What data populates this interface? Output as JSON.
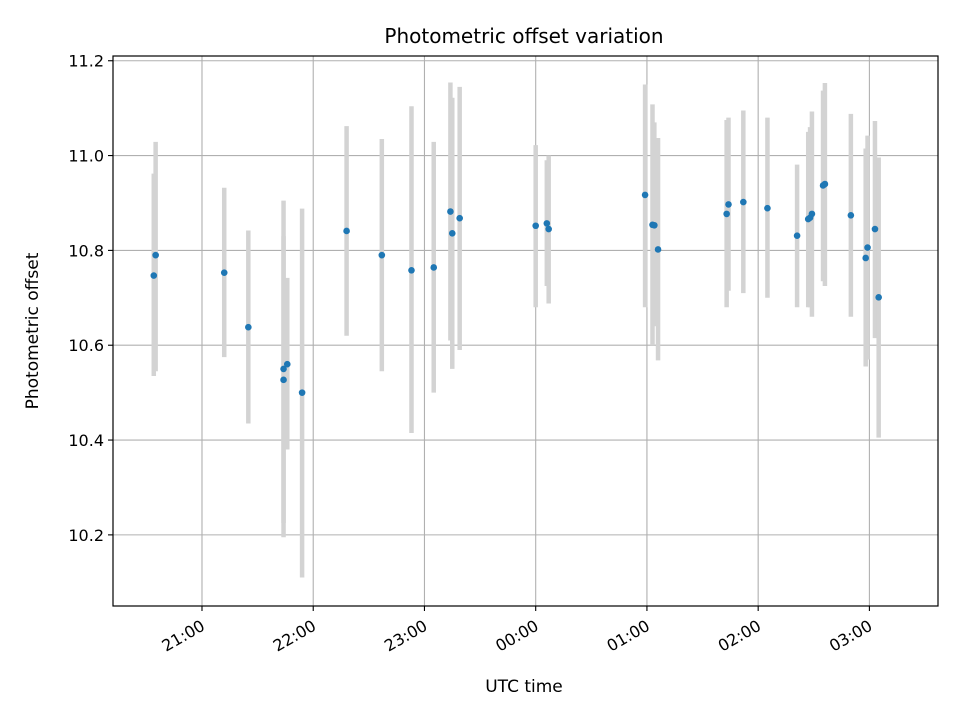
{
  "chart_data": {
    "type": "scatter",
    "title": "Photometric offset variation",
    "xlabel": "UTC time",
    "ylabel": "Photometric offset",
    "x_unit": "UTC time (hh:mm), 20:00 on the first night through 03:30 the next day",
    "xlim": [
      "20:12",
      "03:37"
    ],
    "ylim": [
      10.05,
      11.21
    ],
    "x_ticks": [
      "21:00",
      "22:00",
      "23:00",
      "00:00",
      "01:00",
      "02:00",
      "03:00"
    ],
    "y_ticks": [
      10.2,
      10.4,
      10.6,
      10.8,
      11.0,
      11.2
    ],
    "y_tick_labels": [
      "10.2",
      "10.4",
      "10.6",
      "10.8",
      "11.0",
      "11.2"
    ],
    "grid": true,
    "colors": {
      "point": "#1f77b4",
      "errorbar": "#d3d3d3",
      "grid": "#b0b0b0",
      "axes": "#000000"
    },
    "points": [
      {
        "x": "20:34",
        "y": 10.747,
        "ylow": 10.535,
        "yhigh": 10.962
      },
      {
        "x": "20:35",
        "y": 10.79,
        "ylow": 10.545,
        "yhigh": 11.029
      },
      {
        "x": "21:12",
        "y": 10.753,
        "ylow": 10.575,
        "yhigh": 10.932
      },
      {
        "x": "21:25",
        "y": 10.638,
        "ylow": 10.435,
        "yhigh": 10.842
      },
      {
        "x": "21:44",
        "y": 10.55,
        "ylow": 10.195,
        "yhigh": 10.905
      },
      {
        "x": "21:44",
        "y": 10.527,
        "ylow": 10.225,
        "yhigh": 10.83
      },
      {
        "x": "21:46",
        "y": 10.56,
        "ylow": 10.38,
        "yhigh": 10.742
      },
      {
        "x": "21:54",
        "y": 10.5,
        "ylow": 10.11,
        "yhigh": 10.888
      },
      {
        "x": "22:18",
        "y": 10.841,
        "ylow": 10.62,
        "yhigh": 11.062
      },
      {
        "x": "22:37",
        "y": 10.79,
        "ylow": 10.545,
        "yhigh": 11.035
      },
      {
        "x": "22:53",
        "y": 10.758,
        "ylow": 10.415,
        "yhigh": 11.104
      },
      {
        "x": "23:05",
        "y": 10.764,
        "ylow": 10.5,
        "yhigh": 11.029
      },
      {
        "x": "23:14",
        "y": 10.882,
        "ylow": 10.61,
        "yhigh": 11.154
      },
      {
        "x": "23:15",
        "y": 10.836,
        "ylow": 10.55,
        "yhigh": 11.122
      },
      {
        "x": "23:19",
        "y": 10.868,
        "ylow": 10.59,
        "yhigh": 11.145
      },
      {
        "x": "00:00",
        "y": 10.852,
        "ylow": 10.68,
        "yhigh": 11.022
      },
      {
        "x": "00:06",
        "y": 10.857,
        "ylow": 10.725,
        "yhigh": 10.99
      },
      {
        "x": "00:07",
        "y": 10.845,
        "ylow": 10.688,
        "yhigh": 11.0
      },
      {
        "x": "00:59",
        "y": 10.917,
        "ylow": 10.68,
        "yhigh": 11.15
      },
      {
        "x": "01:03",
        "y": 10.854,
        "ylow": 10.6,
        "yhigh": 11.108
      },
      {
        "x": "01:04",
        "y": 10.853,
        "ylow": 10.64,
        "yhigh": 11.07
      },
      {
        "x": "01:06",
        "y": 10.802,
        "ylow": 10.568,
        "yhigh": 11.037
      },
      {
        "x": "01:43",
        "y": 10.877,
        "ylow": 10.68,
        "yhigh": 11.075
      },
      {
        "x": "01:44",
        "y": 10.897,
        "ylow": 10.715,
        "yhigh": 11.08
      },
      {
        "x": "01:52",
        "y": 10.902,
        "ylow": 10.71,
        "yhigh": 11.095
      },
      {
        "x": "02:05",
        "y": 10.889,
        "ylow": 10.7,
        "yhigh": 11.08
      },
      {
        "x": "02:21",
        "y": 10.831,
        "ylow": 10.68,
        "yhigh": 10.981
      },
      {
        "x": "02:27",
        "y": 10.866,
        "ylow": 10.68,
        "yhigh": 11.05
      },
      {
        "x": "02:28",
        "y": 10.869,
        "ylow": 10.68,
        "yhigh": 11.06
      },
      {
        "x": "02:29",
        "y": 10.877,
        "ylow": 10.66,
        "yhigh": 11.093
      },
      {
        "x": "02:35",
        "y": 10.937,
        "ylow": 10.735,
        "yhigh": 11.137
      },
      {
        "x": "02:36",
        "y": 10.94,
        "ylow": 10.725,
        "yhigh": 11.153
      },
      {
        "x": "02:50",
        "y": 10.874,
        "ylow": 10.66,
        "yhigh": 11.088
      },
      {
        "x": "02:58",
        "y": 10.784,
        "ylow": 10.555,
        "yhigh": 11.015
      },
      {
        "x": "02:59",
        "y": 10.806,
        "ylow": 10.57,
        "yhigh": 11.042
      },
      {
        "x": "03:03",
        "y": 10.845,
        "ylow": 10.615,
        "yhigh": 11.073
      },
      {
        "x": "03:05",
        "y": 10.701,
        "ylow": 10.405,
        "yhigh": 10.996
      }
    ]
  }
}
